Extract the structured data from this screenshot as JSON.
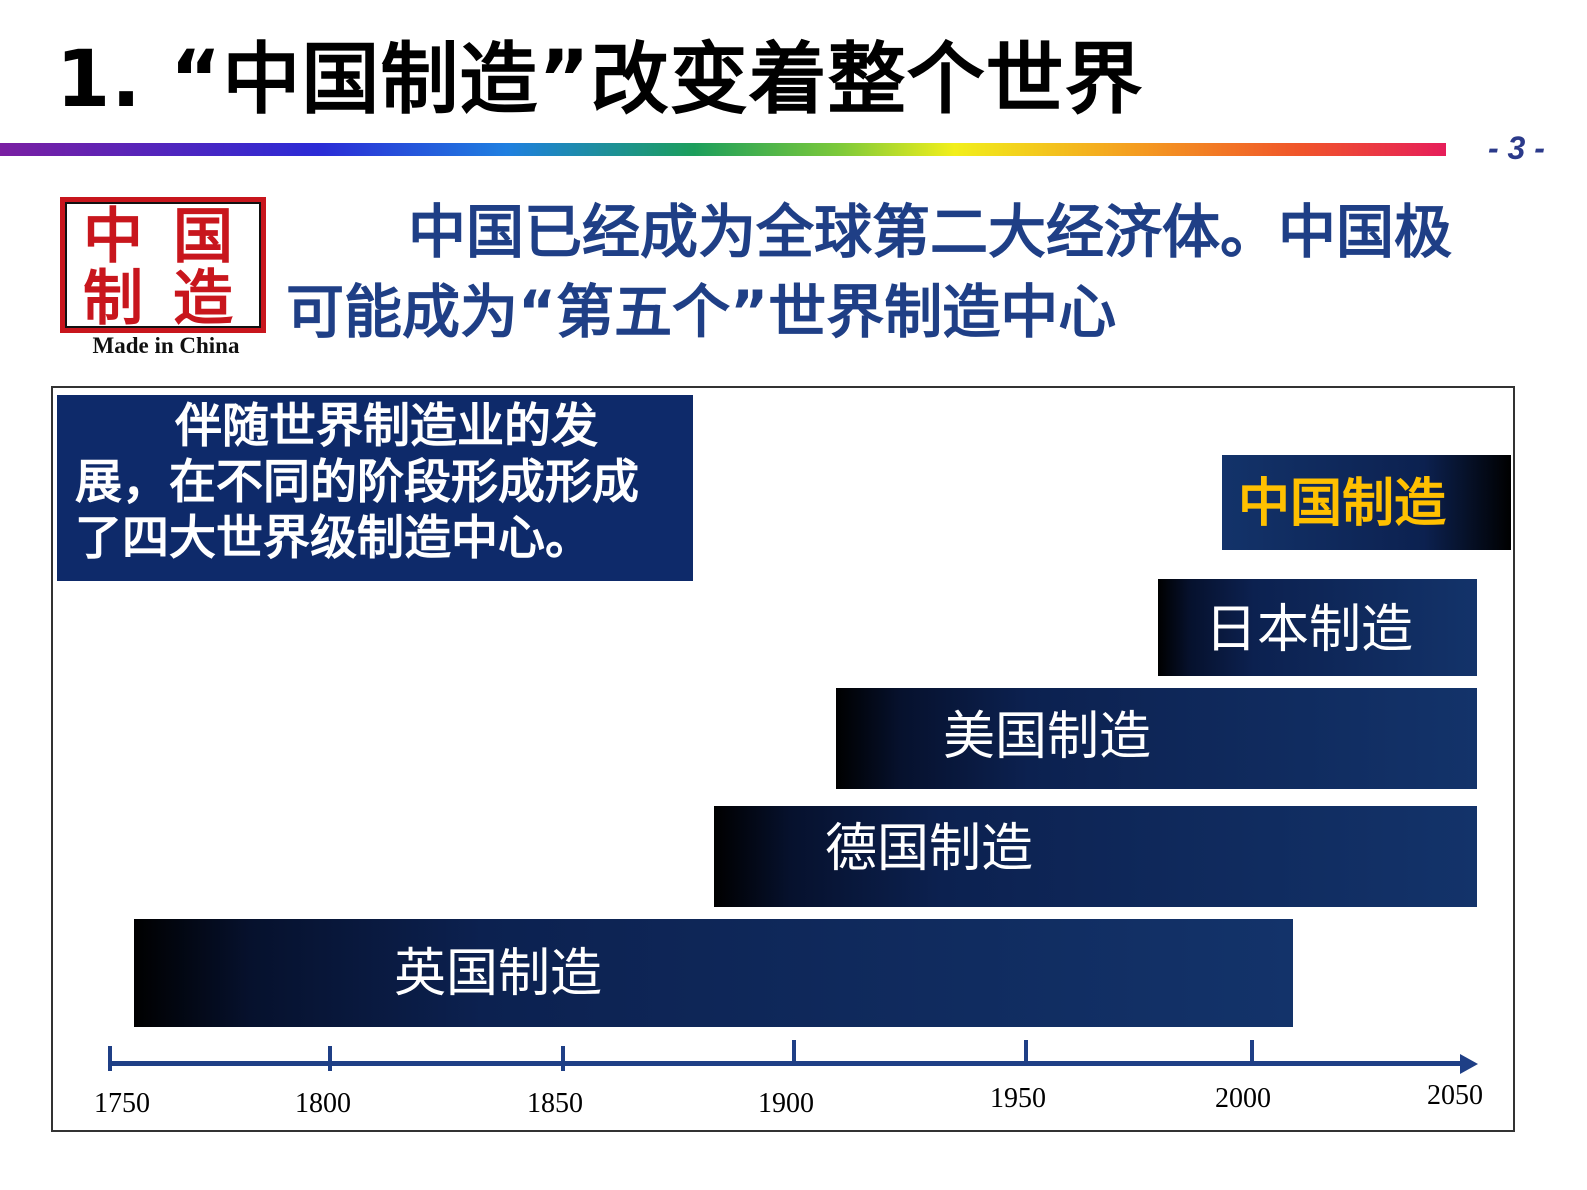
{
  "title": "1. “中国制造”改变着整个世界",
  "page_number": "- 3 -",
  "logo": {
    "chars": [
      "中",
      "国",
      "制",
      "造"
    ],
    "caption": "Made in China",
    "color": "#c8161d"
  },
  "intro": "中国已经成为全球第二大经济体。中国极可能成为“第五个”世界制造中心",
  "caption_box": "伴随世界制造业的发展，在不同的阶段形成形成了四大世界级制造中心。",
  "eras": [
    {
      "label": "英国制造"
    },
    {
      "label": "德国制造"
    },
    {
      "label": "美国制造"
    },
    {
      "label": "日本制造"
    },
    {
      "label": "中国制造"
    }
  ],
  "axis_ticks": [
    "1750",
    "1800",
    "1850",
    "1900",
    "1950",
    "2000",
    "2050"
  ],
  "colors": {
    "title_blue": "#1f3f86",
    "bar_navy": "#13336a",
    "highlight": "#ffc000"
  }
}
